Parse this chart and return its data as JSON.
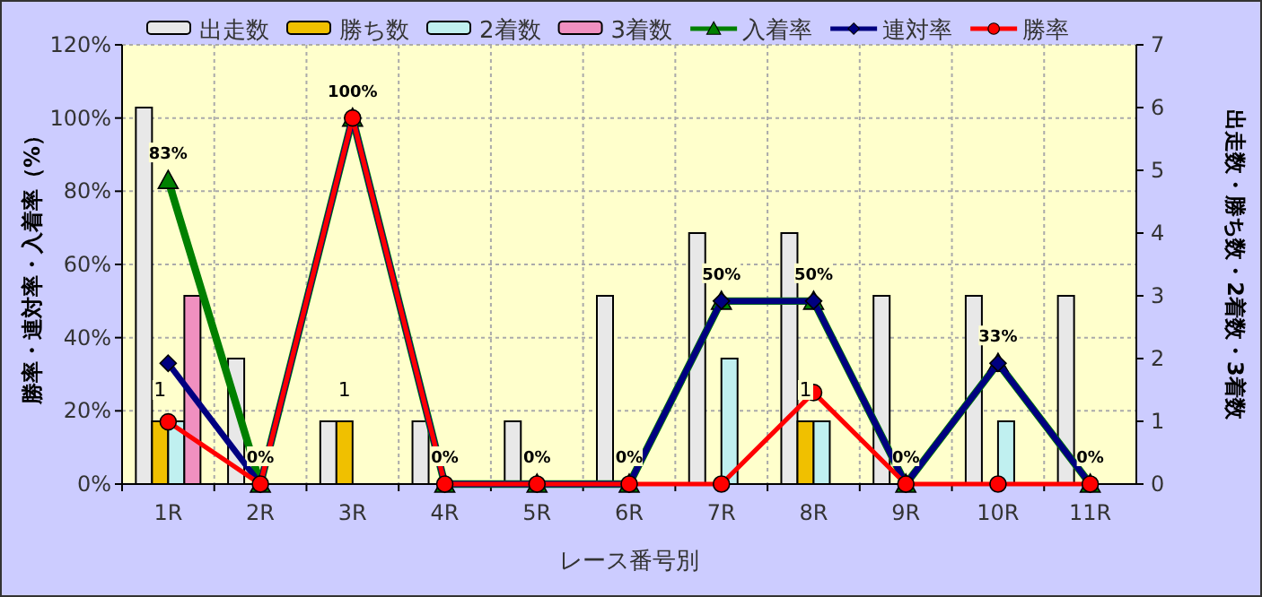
{
  "chart_data": {
    "type": "bar",
    "xlabel": "レース番号別",
    "ylabel": "勝率・連対率・入着率（%）",
    "y2label": "出走数・勝ち数・2着数・3着数",
    "categories": [
      "1R",
      "2R",
      "3R",
      "4R",
      "5R",
      "6R",
      "7R",
      "8R",
      "9R",
      "10R",
      "11R"
    ],
    "series": [
      {
        "name": "出走数",
        "type": "bar",
        "axis": "y2",
        "color": "#e8e8e8",
        "values": [
          6,
          2,
          1,
          1,
          1,
          3,
          4,
          4,
          3,
          3,
          3
        ]
      },
      {
        "name": "勝ち数",
        "type": "bar",
        "axis": "y2",
        "color": "#f0c000",
        "values": [
          1,
          0,
          1,
          0,
          0,
          0,
          0,
          1,
          0,
          0,
          0
        ],
        "value_labels": [
          "1",
          null,
          "1",
          null,
          null,
          null,
          null,
          "1",
          null,
          null,
          null
        ]
      },
      {
        "name": "2着数",
        "type": "bar",
        "axis": "y2",
        "color": "#c0f0f0",
        "values": [
          1,
          0,
          0,
          0,
          0,
          0,
          2,
          1,
          0,
          1,
          0
        ]
      },
      {
        "name": "3着数",
        "type": "bar",
        "axis": "y2",
        "color": "#f090c0",
        "values": [
          3,
          0,
          0,
          0,
          0,
          0,
          0,
          0,
          0,
          0,
          0
        ]
      },
      {
        "name": "入着率",
        "type": "line",
        "color": "#008000",
        "marker": "triangle",
        "values": [
          83,
          0,
          100,
          0,
          0,
          0,
          50,
          50,
          0,
          33,
          0
        ],
        "value_labels": [
          "83%",
          "0%",
          "100%",
          "0%",
          "0%",
          "0%",
          "50%",
          "50%",
          "0%",
          "33%",
          "0%"
        ]
      },
      {
        "name": "連対率",
        "type": "line",
        "color": "#000080",
        "marker": "diamond",
        "values": [
          33,
          0,
          100,
          0,
          0,
          0,
          50,
          50,
          0,
          33,
          0
        ]
      },
      {
        "name": "勝率",
        "type": "line",
        "color": "#ff0000",
        "marker": "circle",
        "values": [
          17,
          0,
          100,
          0,
          0,
          0,
          0,
          25,
          0,
          0,
          0
        ]
      }
    ],
    "ylim": [
      0,
      120
    ],
    "yticks": [
      {
        "value": 0,
        "label": "0%"
      },
      {
        "value": 20,
        "label": "20%"
      },
      {
        "value": 40,
        "label": "40%"
      },
      {
        "value": 60,
        "label": "60%"
      },
      {
        "value": 80,
        "label": "80%"
      },
      {
        "value": 100,
        "label": "100%"
      },
      {
        "value": 120,
        "label": "120%"
      }
    ],
    "y2lim": [
      0,
      7
    ],
    "y2ticks": [
      0,
      1,
      2,
      3,
      4,
      5,
      6,
      7
    ],
    "grid": true,
    "legend": "top"
  }
}
